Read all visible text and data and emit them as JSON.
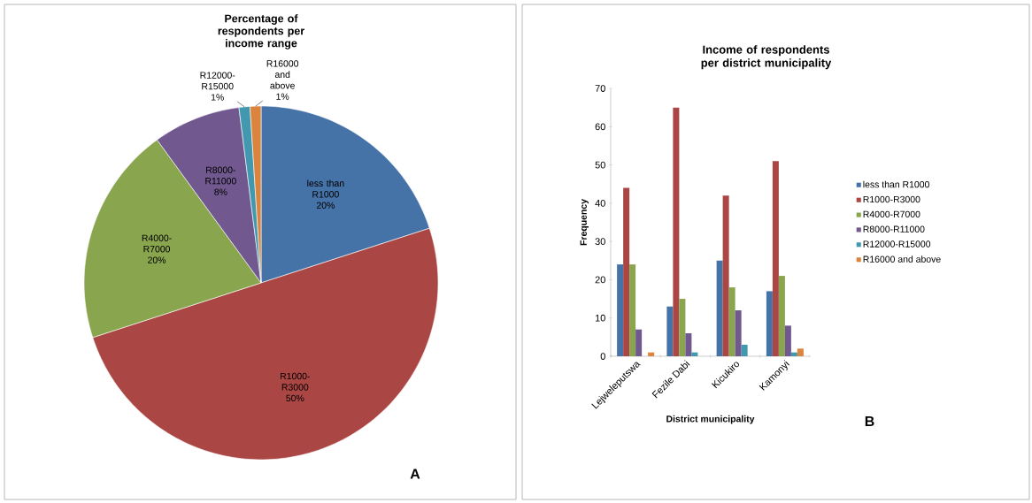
{
  "chart_data": [
    {
      "type": "pie",
      "title": "Percentage of respondents per income range",
      "categories": [
        "less than R1000",
        "R1000-R3000",
        "R4000-R7000",
        "R8000-R11000",
        "R12000-R15000",
        "R16000 and above"
      ],
      "values": [
        20,
        50,
        20,
        8,
        1,
        1
      ],
      "value_labels": [
        "20%",
        "50%",
        "20%",
        "8%",
        "1%",
        "1%"
      ],
      "colors": [
        "#4572a7",
        "#aa4643",
        "#89a54e",
        "#71588f",
        "#4198af",
        "#db843d"
      ],
      "annotations": [
        "A"
      ]
    },
    {
      "type": "bar",
      "title": "Income of respondents per  district municipality",
      "xlabel": "District municipality",
      "ylabel": "Frequency",
      "categories": [
        "Lejweleputswa",
        "Fezile Dabi",
        "Kicukiro",
        "Kamonyi"
      ],
      "series": [
        {
          "name": "less than R1000",
          "color": "#4572a7",
          "values": [
            24,
            13,
            25,
            17
          ]
        },
        {
          "name": "R1000-R3000",
          "color": "#aa4643",
          "values": [
            44,
            65,
            42,
            51
          ]
        },
        {
          "name": "R4000-R7000",
          "color": "#89a54e",
          "values": [
            24,
            15,
            18,
            21
          ]
        },
        {
          "name": "R8000-R11000",
          "color": "#71588f",
          "values": [
            7,
            6,
            12,
            8
          ]
        },
        {
          "name": "R12000-R15000",
          "color": "#4198af",
          "values": [
            0,
            1,
            3,
            1
          ]
        },
        {
          "name": "R16000 and above",
          "color": "#db843d",
          "values": [
            1,
            0,
            0,
            2
          ]
        }
      ],
      "ylim": [
        0,
        70
      ],
      "yticks": [
        0,
        10,
        20,
        30,
        40,
        50,
        60,
        70
      ],
      "legend": "right",
      "annotations": [
        "B"
      ]
    }
  ]
}
